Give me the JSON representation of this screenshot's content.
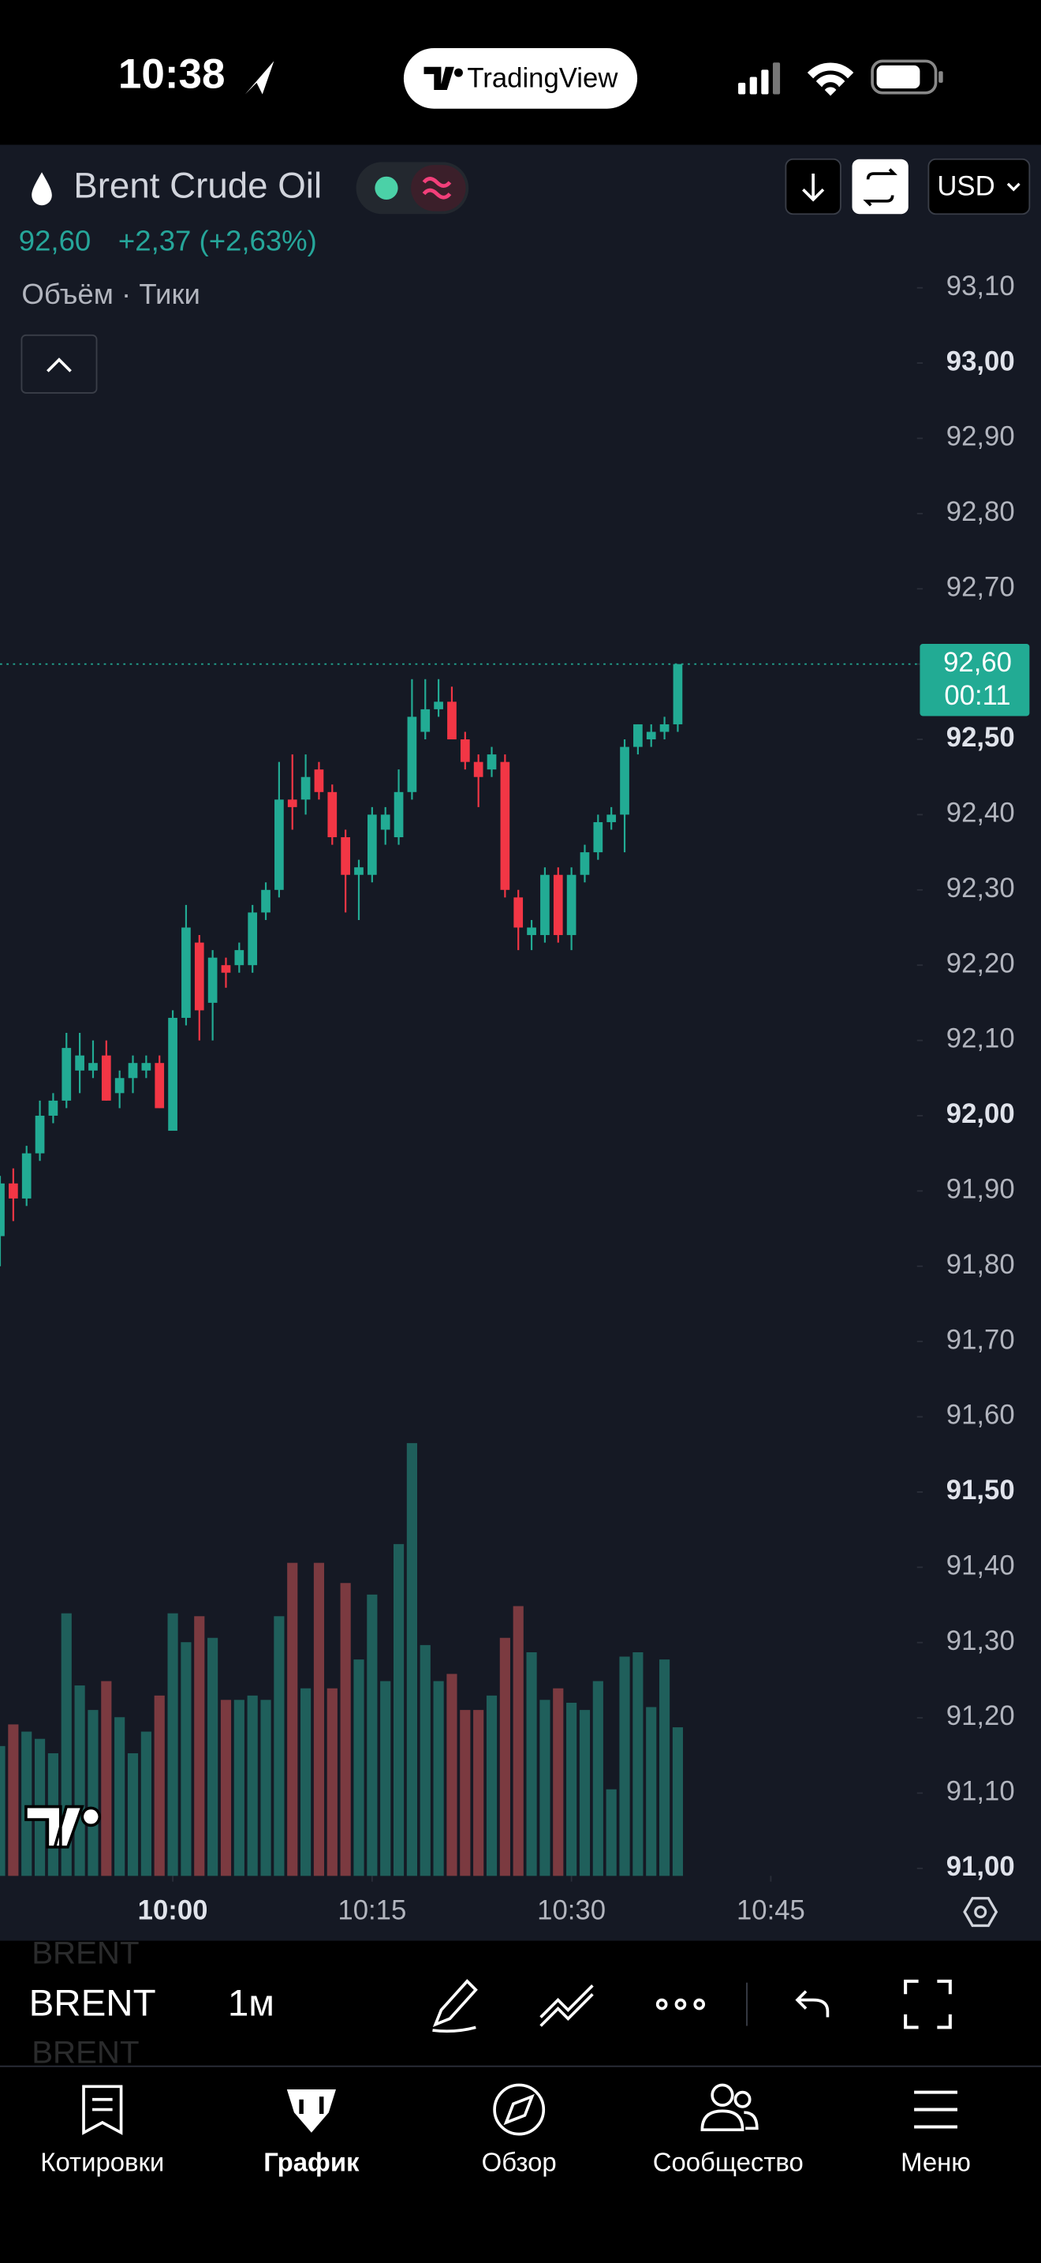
{
  "status_bar": {
    "time": "10:38",
    "app": "TradingView"
  },
  "header": {
    "symbol": "Brent Crude Oil",
    "price": "92,60",
    "change": "+2,37 (+2,63%)",
    "indicators": "Объём · Тики",
    "currency": "USD"
  },
  "chart_data": {
    "type": "candlestick",
    "x": [
      "9:47",
      "9:48",
      "9:49",
      "9:50",
      "9:51",
      "9:52",
      "9:53",
      "9:54",
      "9:55",
      "9:56",
      "9:57",
      "9:58",
      "9:59",
      "10:00",
      "10:01",
      "10:02",
      "10:03",
      "10:04",
      "10:05",
      "10:06",
      "10:07",
      "10:08",
      "10:09",
      "10:10",
      "10:11",
      "10:12",
      "10:13",
      "10:14",
      "10:15",
      "10:16",
      "10:17",
      "10:18",
      "10:19",
      "10:20",
      "10:21",
      "10:22",
      "10:23",
      "10:24",
      "10:25",
      "10:26",
      "10:27",
      "10:28",
      "10:29",
      "10:30",
      "10:31",
      "10:32",
      "10:33",
      "10:34",
      "10:35",
      "10:36",
      "10:37",
      "10:38"
    ],
    "open": [
      91.84,
      91.91,
      91.89,
      91.95,
      92.0,
      92.02,
      92.06,
      92.06,
      92.08,
      92.03,
      92.05,
      92.06,
      92.07,
      91.98,
      92.13,
      92.23,
      92.15,
      92.2,
      92.2,
      92.2,
      92.27,
      92.3,
      92.42,
      92.42,
      92.46,
      92.43,
      92.37,
      92.32,
      92.32,
      92.38,
      92.37,
      92.43,
      92.51,
      92.54,
      92.55,
      92.5,
      92.47,
      92.46,
      92.47,
      92.29,
      92.24,
      92.24,
      92.32,
      92.24,
      92.32,
      92.35,
      92.39,
      92.4,
      92.49,
      92.5,
      92.51,
      92.52
    ],
    "high": [
      91.92,
      91.93,
      91.96,
      92.02,
      92.03,
      92.11,
      92.11,
      92.1,
      92.1,
      92.06,
      92.08,
      92.08,
      92.08,
      92.14,
      92.28,
      92.24,
      92.22,
      92.21,
      92.23,
      92.28,
      92.31,
      92.47,
      92.48,
      92.48,
      92.47,
      92.44,
      92.38,
      92.34,
      92.41,
      92.41,
      92.46,
      92.58,
      92.58,
      92.58,
      92.57,
      92.51,
      92.48,
      92.49,
      92.48,
      92.3,
      92.26,
      92.33,
      92.33,
      92.33,
      92.36,
      92.4,
      92.41,
      92.5,
      92.52,
      92.52,
      92.53,
      92.6
    ],
    "low": [
      91.8,
      91.86,
      91.88,
      91.94,
      91.99,
      92.01,
      92.03,
      92.05,
      92.02,
      92.01,
      92.03,
      92.05,
      92.01,
      91.98,
      92.12,
      92.1,
      92.1,
      92.17,
      92.19,
      92.19,
      92.26,
      92.29,
      92.38,
      92.4,
      92.42,
      92.36,
      92.27,
      92.26,
      92.31,
      92.36,
      92.36,
      92.42,
      92.5,
      92.53,
      92.5,
      92.46,
      92.41,
      92.45,
      92.29,
      92.22,
      92.22,
      92.23,
      92.23,
      92.22,
      92.31,
      92.34,
      92.38,
      92.35,
      92.48,
      92.49,
      92.5,
      92.51
    ],
    "close": [
      91.91,
      91.89,
      91.95,
      92.0,
      92.02,
      92.09,
      92.08,
      92.07,
      92.02,
      92.05,
      92.07,
      92.07,
      92.01,
      92.13,
      92.25,
      92.14,
      92.21,
      92.19,
      92.22,
      92.27,
      92.3,
      92.42,
      92.41,
      92.45,
      92.43,
      92.37,
      92.32,
      92.33,
      92.4,
      92.4,
      92.43,
      92.53,
      92.54,
      92.55,
      92.5,
      92.47,
      92.45,
      92.48,
      92.3,
      92.25,
      92.25,
      92.32,
      92.24,
      92.32,
      92.35,
      92.39,
      92.4,
      92.49,
      92.52,
      92.51,
      92.52,
      92.6
    ],
    "volume": [
      90,
      105,
      100,
      95,
      85,
      182,
      132,
      115,
      135,
      110,
      85,
      100,
      125,
      182,
      162,
      180,
      165,
      122,
      122,
      125,
      122,
      180,
      217,
      130,
      217,
      130,
      203,
      150,
      195,
      135,
      230,
      300,
      160,
      135,
      140,
      115,
      115,
      125,
      165,
      187,
      155,
      122,
      130,
      120,
      115,
      135,
      60,
      152,
      155,
      117,
      150,
      103
    ],
    "xlim": [
      "9:47",
      "10:56"
    ],
    "xticks": [
      "10:00",
      "10:15",
      "10:30",
      "10:45"
    ],
    "ylim": [
      90.99,
      93.29
    ],
    "yticks": [
      {
        "value": 93.1,
        "label": "93,10"
      },
      {
        "value": 93,
        "label": "93,00"
      },
      {
        "value": 92.9,
        "label": "92,90"
      },
      {
        "value": 92.8,
        "label": "92,80"
      },
      {
        "value": 92.7,
        "label": "92,70"
      },
      {
        "value": 92.6,
        "label": "92,60"
      },
      {
        "value": 92.5,
        "label": "92,50"
      },
      {
        "value": 92.4,
        "label": "92,40"
      },
      {
        "value": 92.3,
        "label": "92,30"
      },
      {
        "value": 92.2,
        "label": "92,20"
      },
      {
        "value": 92.1,
        "label": "92,10"
      },
      {
        "value": 92,
        "label": "92,00"
      },
      {
        "value": 91.9,
        "label": "91,90"
      },
      {
        "value": 91.8,
        "label": "91,80"
      },
      {
        "value": 91.7,
        "label": "91,70"
      },
      {
        "value": 91.6,
        "label": "91,60"
      },
      {
        "value": 91.5,
        "label": "91,50"
      },
      {
        "value": 91.4,
        "label": "91,40"
      },
      {
        "value": 91.3,
        "label": "91,30"
      },
      {
        "value": 91.2,
        "label": "91,20"
      },
      {
        "value": 91.1,
        "label": "91,10"
      },
      {
        "value": 91,
        "label": "91,00"
      }
    ],
    "up_color": "#22ab94",
    "down_color": "#f23645",
    "up_volume_color": "#1f5f5b",
    "down_volume_color": "#7b3a40",
    "last_price": {
      "value": 92.6,
      "label": "92,60",
      "countdown": "00:11"
    }
  },
  "toolbar": {
    "symbol": "BRENT",
    "symbol_prev": "BRENT",
    "symbol_next": "BRENT",
    "interval": "1м"
  },
  "nav": [
    "Котировки",
    "График",
    "Обзор",
    "Сообщество",
    "Меню"
  ]
}
